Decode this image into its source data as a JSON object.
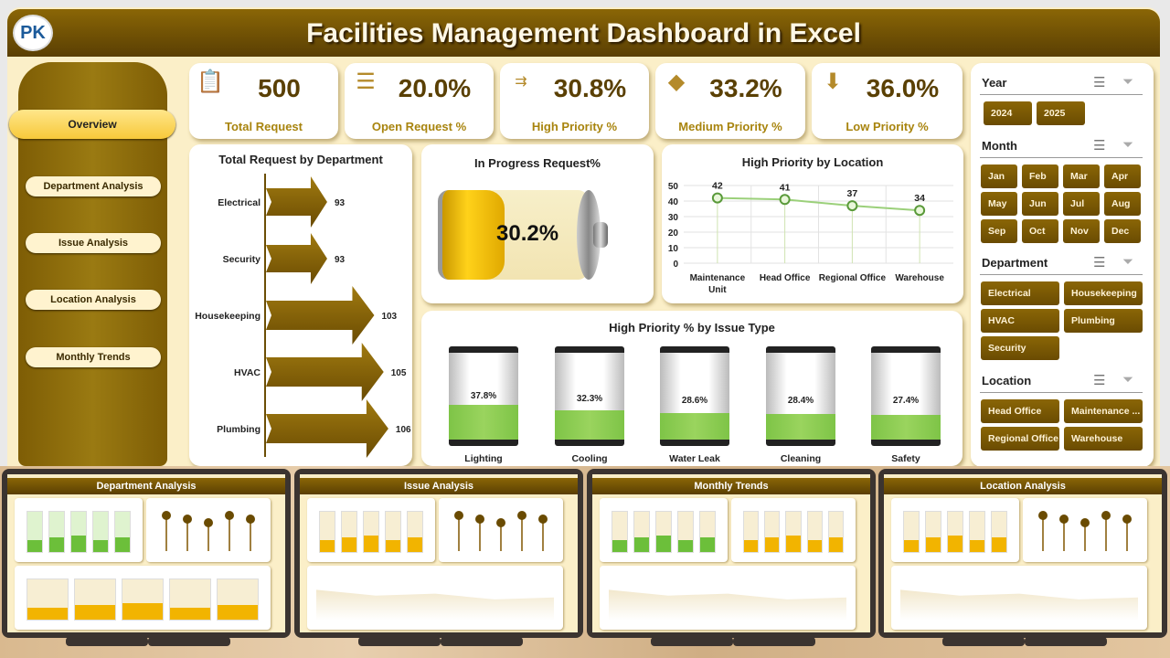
{
  "header": {
    "title": "Facilities Management Dashboard in Excel",
    "logo_text": "PK"
  },
  "nav": {
    "items": [
      {
        "label": "Overview"
      },
      {
        "label": "Department Analysis"
      },
      {
        "label": "Issue Analysis"
      },
      {
        "label": "Location Analysis"
      },
      {
        "label": "Monthly Trends"
      }
    ]
  },
  "kpis": [
    {
      "value": "500",
      "label": "Total Request",
      "icon": "clipboard-icon"
    },
    {
      "value": "20.0%",
      "label": "Open Request %",
      "icon": "touch-list-icon"
    },
    {
      "value": "30.8%",
      "label": "High Priority %",
      "icon": "priority-arrows-icon"
    },
    {
      "value": "33.2%",
      "label": "Medium Priority %",
      "icon": "diamond-sign-icon"
    },
    {
      "value": "36.0%",
      "label": "Low Priority %",
      "icon": "down-arrow-pin-icon"
    }
  ],
  "colors": {
    "brand": "#8a6606",
    "cream": "#fbefc8",
    "green": "#8fd14f",
    "gold": "#f5b800"
  },
  "chart_data": [
    {
      "type": "bar",
      "title": "Total Request by Department",
      "categories": [
        "Electrical",
        "Security",
        "Housekeeping",
        "HVAC",
        "Plumbing"
      ],
      "values": [
        93,
        93,
        103,
        105,
        106
      ]
    },
    {
      "type": "gauge",
      "title": "In Progress Request%",
      "value": 30.2,
      "label": "30.2%"
    },
    {
      "type": "line",
      "title": "High Priority by Location",
      "categories": [
        "Maintenance Unit",
        "Head Office",
        "Regional Office",
        "Warehouse"
      ],
      "values": [
        42,
        41,
        37,
        34
      ],
      "yticks": [
        "0",
        "10",
        "20",
        "30",
        "40",
        "50"
      ],
      "ylim": [
        0,
        50
      ]
    },
    {
      "type": "bar",
      "title": "High Priority % by Issue Type",
      "categories": [
        "Lighting",
        "Cooling",
        "Water Leak",
        "Cleaning",
        "Safety"
      ],
      "values": [
        37.8,
        32.3,
        28.6,
        28.4,
        27.4
      ],
      "labels": [
        "37.8%",
        "32.3%",
        "28.6%",
        "28.4%",
        "27.4%"
      ]
    }
  ],
  "slicers": {
    "year": {
      "title": "Year",
      "items": [
        "2024",
        "2025"
      ]
    },
    "month": {
      "title": "Month",
      "items": [
        "Jan",
        "Feb",
        "Mar",
        "Apr",
        "May",
        "Jun",
        "Jul",
        "Aug",
        "Sep",
        "Oct",
        "Nov",
        "Dec"
      ]
    },
    "department": {
      "title": "Department",
      "items": [
        "Electrical",
        "Housekeeping",
        "HVAC",
        "Plumbing",
        "Security"
      ]
    },
    "location": {
      "title": "Location",
      "items": [
        "Head Office",
        "Maintenance ...",
        "Regional Office",
        "Warehouse"
      ]
    }
  },
  "previews": [
    {
      "title": "Department Analysis"
    },
    {
      "title": "Issue Analysis"
    },
    {
      "title": "Monthly Trends"
    },
    {
      "title": "Location Analysis"
    }
  ]
}
